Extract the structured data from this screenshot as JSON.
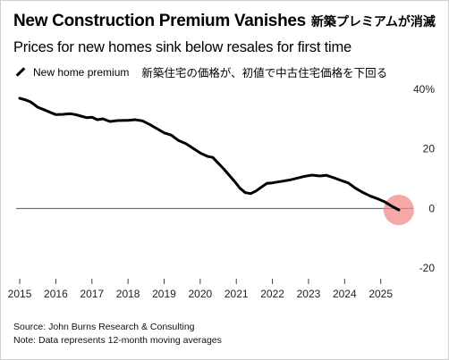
{
  "title": "New Construction Premium Vanishes",
  "title_ja": "新築プレミアムが消滅",
  "subtitle": "Prices for new homes sink below resales for first time",
  "legend_label": "New home premium",
  "legend_ja": "新築住宅の価格が、初値で中古住宅価格を下回る",
  "source": "Source: John Burns Research & Consulting",
  "note": "Note: Data represents 12-month moving averages",
  "colors": {
    "line": "#000000",
    "highlight": "#f28b8b",
    "zero_line": "#555555",
    "grid": "#dddddd"
  },
  "chart_data": {
    "type": "line",
    "ylim": [
      -20,
      40
    ],
    "y_ticks": [
      "40%",
      "20",
      "0",
      "-20"
    ],
    "y_tick_values": [
      40,
      20,
      0,
      -20
    ],
    "x_tick_labels": [
      "2015",
      "2016",
      "2017",
      "2018",
      "2019",
      "2020",
      "2021",
      "2022",
      "2023",
      "2024",
      "2025"
    ],
    "x_tick_values": [
      2015,
      2016,
      2017,
      2018,
      2019,
      2020,
      2021,
      2022,
      2023,
      2024,
      2025
    ],
    "xlim": [
      2014.9,
      2025.9
    ],
    "highlight_point": {
      "x": 2025.5,
      "y": -0.5
    },
    "series": [
      {
        "name": "New home premium",
        "x": [
          2015.0,
          2015.15,
          2015.3,
          2015.5,
          2015.7,
          2015.9,
          2016.0,
          2016.2,
          2016.4,
          2016.55,
          2016.7,
          2016.85,
          2017.0,
          2017.15,
          2017.3,
          2017.5,
          2017.7,
          2017.9,
          2018.0,
          2018.2,
          2018.4,
          2018.6,
          2018.8,
          2019.0,
          2019.2,
          2019.4,
          2019.6,
          2019.8,
          2020.0,
          2020.2,
          2020.35,
          2020.5,
          2020.65,
          2020.8,
          2020.95,
          2021.1,
          2021.25,
          2021.4,
          2021.55,
          2021.7,
          2021.85,
          2022.0,
          2022.15,
          2022.3,
          2022.5,
          2022.7,
          2022.9,
          2023.1,
          2023.3,
          2023.5,
          2023.7,
          2023.9,
          2024.1,
          2024.3,
          2024.5,
          2024.7,
          2024.9,
          2025.1,
          2025.3,
          2025.5
        ],
        "y": [
          37.0,
          36.5,
          35.8,
          34.0,
          33.0,
          32.0,
          31.5,
          31.6,
          31.8,
          31.5,
          31.0,
          30.5,
          30.6,
          29.8,
          30.1,
          29.2,
          29.5,
          29.6,
          29.6,
          29.8,
          29.4,
          28.2,
          26.8,
          25.4,
          24.6,
          22.8,
          21.8,
          20.2,
          18.6,
          17.5,
          17.1,
          15.2,
          13.3,
          11.2,
          9.1,
          6.8,
          5.3,
          5.0,
          5.9,
          7.2,
          8.4,
          8.6,
          8.9,
          9.2,
          9.6,
          10.2,
          10.8,
          11.2,
          10.9,
          11.1,
          10.3,
          9.4,
          8.6,
          6.8,
          5.4,
          4.2,
          3.3,
          2.3,
          0.8,
          -0.5
        ]
      }
    ]
  }
}
